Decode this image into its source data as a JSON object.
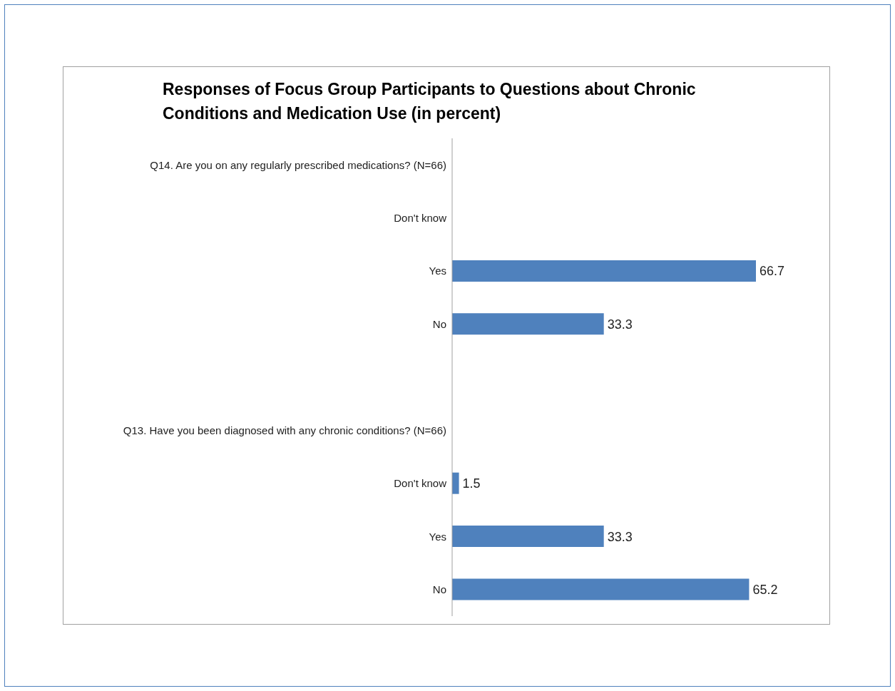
{
  "chart_data": {
    "type": "bar",
    "orientation": "horizontal",
    "title": "Responses  of Focus Group Participants to Questions  about Chronic Conditions and Medication Use (in percent)",
    "categories": [
      "Q14. Are you on any regularly prescribed medications? (N=66)",
      "Don't know",
      "Yes",
      "No",
      null,
      "Q13. Have you been diagnosed with any chronic conditions? (N=66)",
      "Don't know",
      "Yes",
      "No"
    ],
    "values": [
      null,
      null,
      66.7,
      33.3,
      null,
      null,
      1.5,
      33.3,
      65.2
    ],
    "color": "#4f81bd",
    "data_labels": true
  }
}
